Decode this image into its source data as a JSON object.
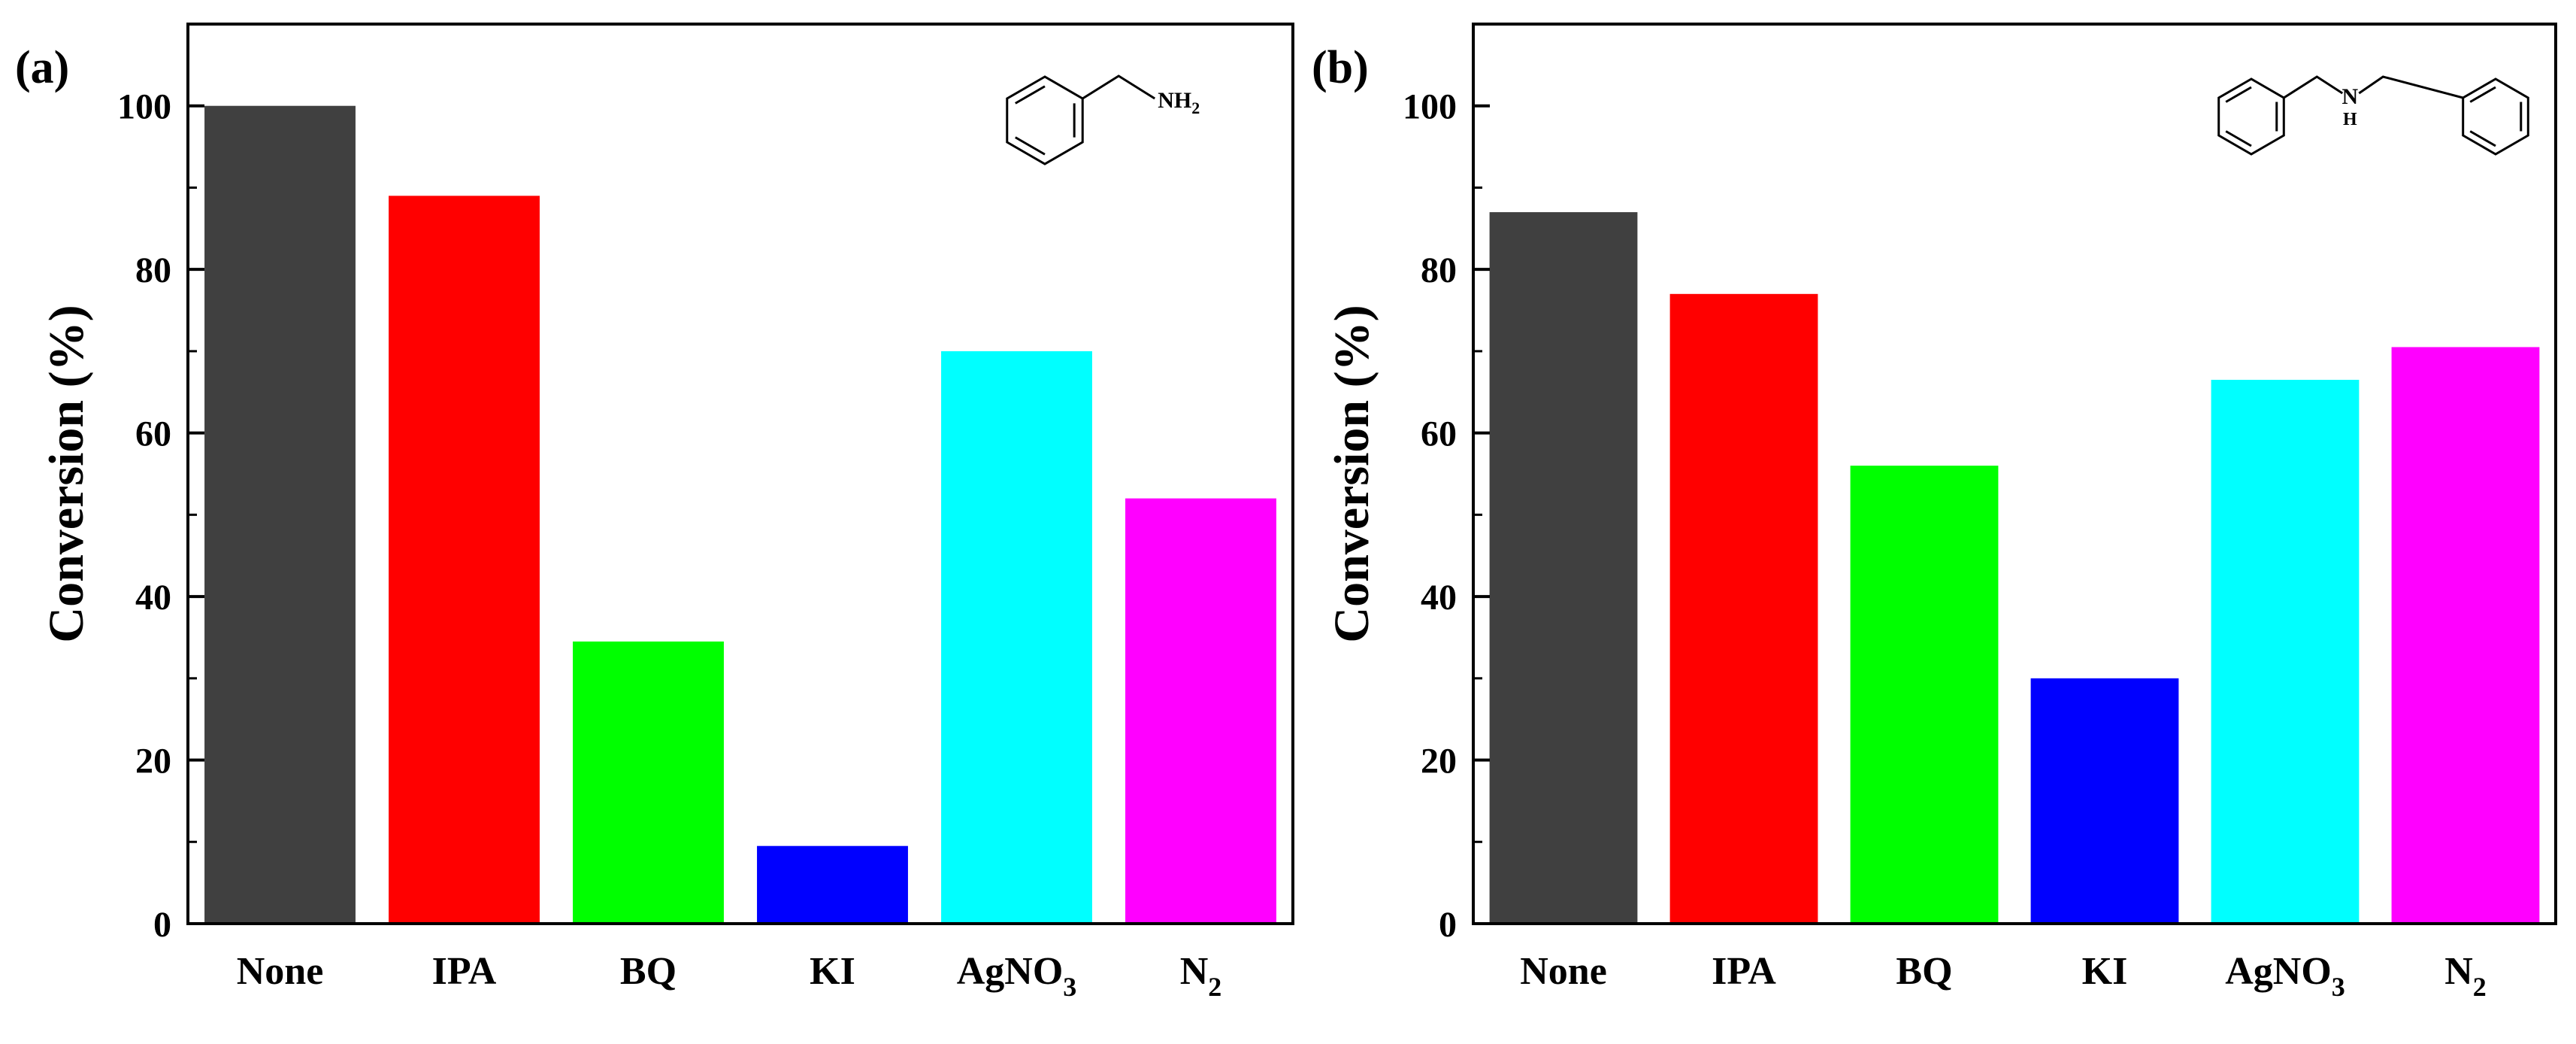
{
  "chart_data": [
    {
      "panel_label": "(a)",
      "type": "bar",
      "title": "",
      "xlabel": "",
      "ylabel": "Conversion (%)",
      "ylim": [
        0,
        110
      ],
      "yticks": [
        0,
        20,
        40,
        60,
        80,
        100
      ],
      "categories": [
        {
          "main": "None",
          "sub": ""
        },
        {
          "main": "IPA",
          "sub": ""
        },
        {
          "main": "BQ",
          "sub": ""
        },
        {
          "main": "KI",
          "sub": ""
        },
        {
          "main": "AgNO",
          "sub": "3"
        },
        {
          "main": "N",
          "sub": "2"
        }
      ],
      "values": [
        100,
        89,
        34.5,
        9.5,
        70,
        52
      ],
      "colors": [
        "#404040",
        "#ff0000",
        "#00ff00",
        "#0000ff",
        "#00ffff",
        "#ff00ff"
      ],
      "molecule": {
        "name": "benzylamine",
        "label": "NH",
        "label_sub": "2"
      }
    },
    {
      "panel_label": "(b)",
      "type": "bar",
      "title": "",
      "xlabel": "",
      "ylabel": "Conversion (%)",
      "ylim": [
        0,
        110
      ],
      "yticks": [
        0,
        20,
        40,
        60,
        80,
        100
      ],
      "categories": [
        {
          "main": "None",
          "sub": ""
        },
        {
          "main": "IPA",
          "sub": ""
        },
        {
          "main": "BQ",
          "sub": ""
        },
        {
          "main": "KI",
          "sub": ""
        },
        {
          "main": "AgNO",
          "sub": "3"
        },
        {
          "main": "N",
          "sub": "2"
        }
      ],
      "values": [
        87,
        77,
        56,
        30,
        66.5,
        70.5
      ],
      "colors": [
        "#404040",
        "#ff0000",
        "#00ff00",
        "#0000ff",
        "#00ffff",
        "#ff00ff"
      ],
      "molecule": {
        "name": "dibenzylamine",
        "label": "N",
        "label_below": "H"
      }
    }
  ]
}
